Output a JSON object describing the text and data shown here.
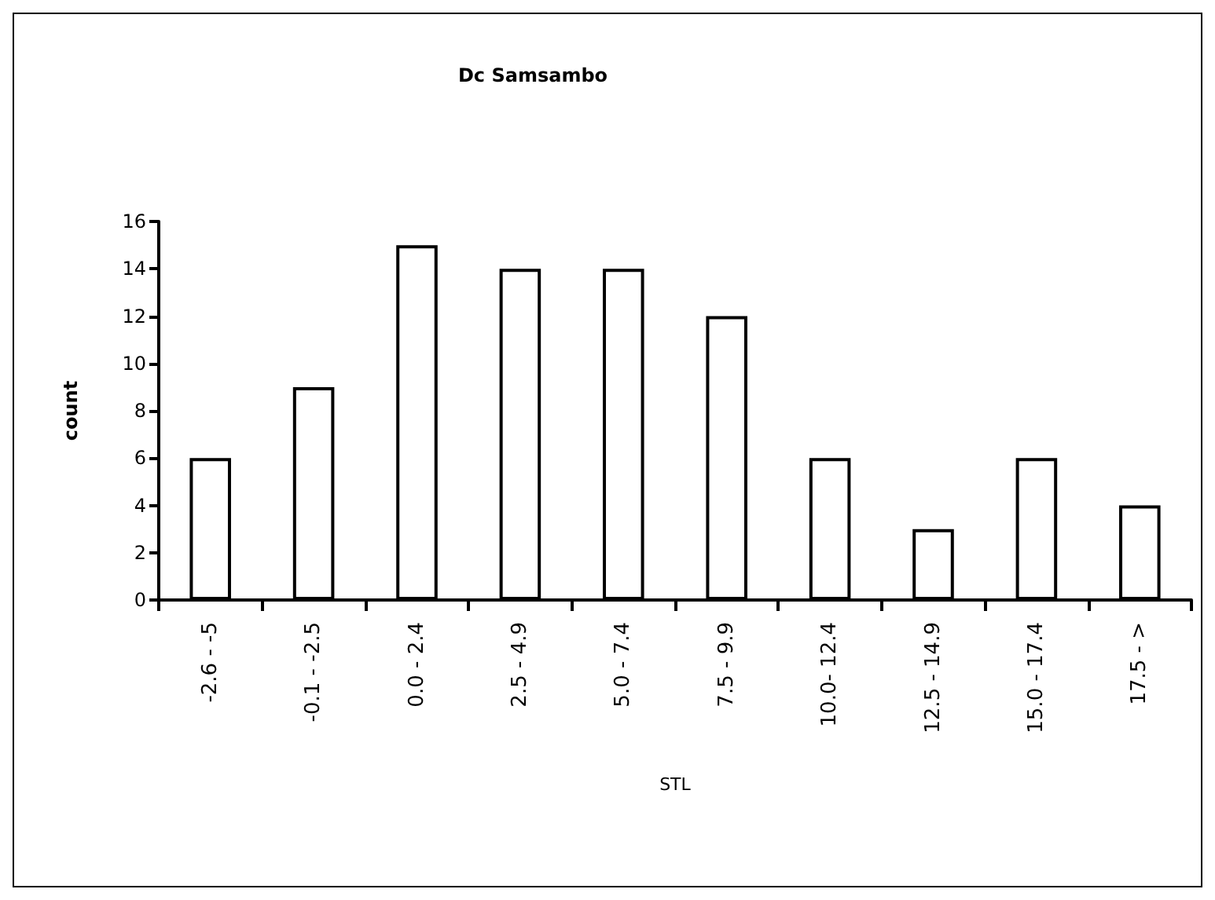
{
  "chart_data": {
    "type": "bar",
    "title": "Dc Samsambo",
    "xlabel": "STL",
    "ylabel": "count",
    "categories": [
      "-2.6 - -5",
      "-0.1 - -2.5",
      "0.0 - 2.4",
      "2.5 - 4.9",
      "5.0 - 7.4",
      "7.5 - 9.9",
      "10.0- 12.4",
      "12.5 - 14.9",
      "15.0 - 17.4",
      "17.5 - >"
    ],
    "values": [
      6,
      9,
      15,
      14,
      14,
      12,
      6,
      3,
      6,
      4
    ],
    "color": "#ffffff",
    "ylim": [
      0,
      16
    ],
    "yticks": [
      0,
      2,
      4,
      6,
      8,
      10,
      12,
      14,
      16
    ],
    "grid": false
  }
}
